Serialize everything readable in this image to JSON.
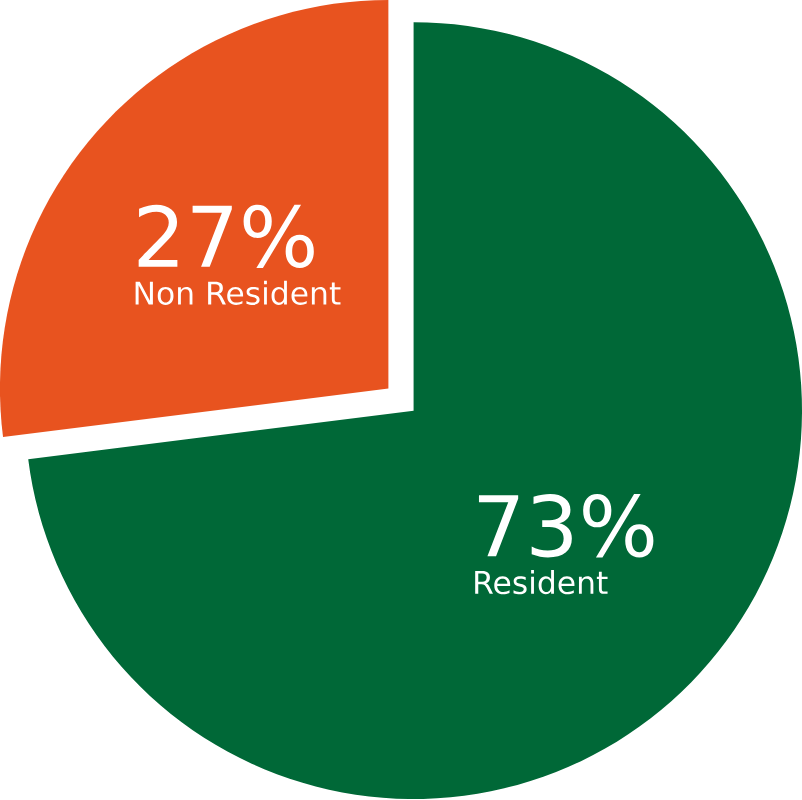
{
  "chart_data": {
    "type": "pie",
    "categories": [
      "Non Resident",
      "Resident"
    ],
    "values": [
      27,
      73
    ],
    "colors": [
      "#e8531f",
      "#006837"
    ],
    "value_labels": [
      "27%",
      "73%"
    ]
  }
}
